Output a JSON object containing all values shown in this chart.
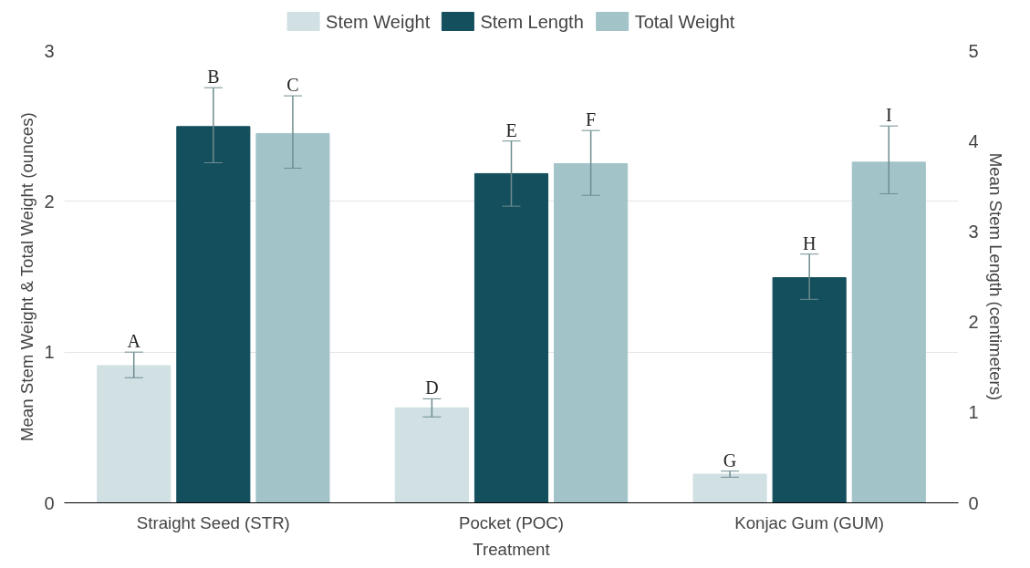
{
  "chart_data": {
    "type": "bar",
    "xlabel": "Treatment",
    "ylabel": "Mean Stem Weight & Total Weight (ounces)",
    "y2label": "Mean Stem Length (centimeters)",
    "categories": [
      "Straight Seed (STR)",
      "Pocket (POC)",
      "Konjac Gum (GUM)"
    ],
    "series": [
      {
        "name": "Stem Weight",
        "color": "#d0e0e3",
        "values": [
          0.91,
          0.63,
          0.19
        ],
        "errors": [
          [
            0.83,
            1.0
          ],
          [
            0.57,
            0.69
          ],
          [
            0.17,
            0.21
          ]
        ]
      },
      {
        "name": "Stem Length",
        "color": "#134f5c",
        "axis": "y2",
        "values": [
          4.16,
          3.64,
          2.49
        ],
        "errors": [
          [
            3.76,
            4.59
          ],
          [
            3.28,
            4.0
          ],
          [
            2.25,
            2.75
          ]
        ]
      },
      {
        "name": "Total Weight",
        "color": "#a2c4c9",
        "values": [
          2.45,
          2.25,
          2.26
        ],
        "errors": [
          [
            2.22,
            2.7
          ],
          [
            2.04,
            2.47
          ],
          [
            2.05,
            2.5
          ]
        ]
      }
    ],
    "ylim": [
      0,
      3
    ],
    "yticks": [
      0,
      1,
      2,
      3
    ],
    "y2lim": [
      0,
      5
    ],
    "y2ticks": [
      0,
      1,
      2,
      3,
      4,
      5
    ],
    "grid": "y",
    "legend": "top",
    "annotations": [
      "A",
      "B",
      "C",
      "D",
      "E",
      "F",
      "G",
      "H",
      "I"
    ]
  }
}
